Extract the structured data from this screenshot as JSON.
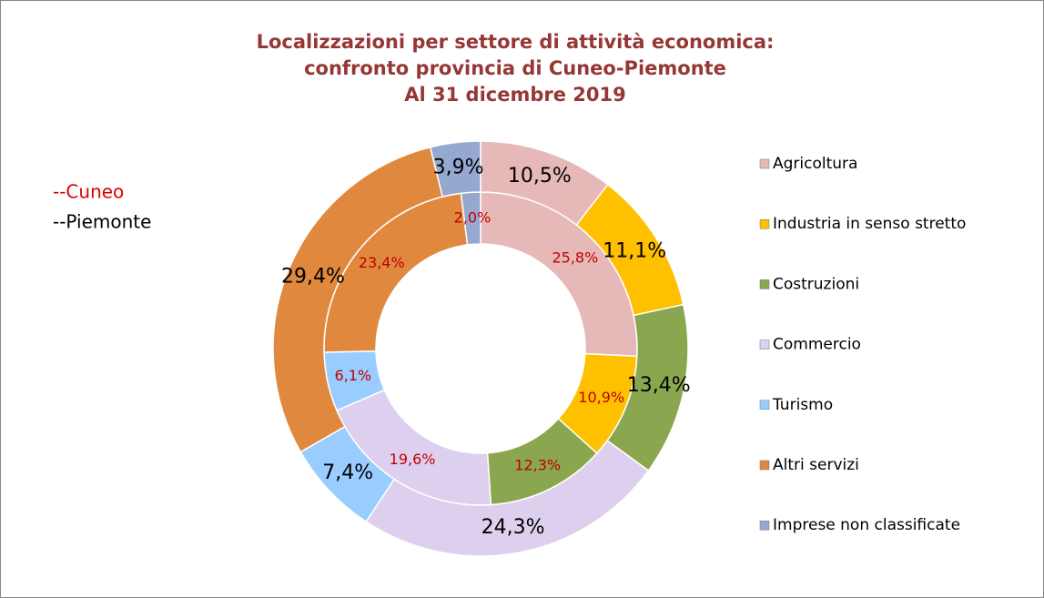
{
  "chart_data": {
    "type": "donut",
    "title": [
      "Localizzazioni per settore di attività economica:",
      "confronto provincia di Cuneo-Piemonte",
      "Al 31 dicembre 2019"
    ],
    "categories": [
      "Agricoltura",
      "Industria in senso stretto",
      "Costruzioni",
      "Commercio",
      "Turismo",
      "Altri servizi",
      "Imprese non classificate"
    ],
    "colors": [
      "#e6b9b8",
      "#ffc000",
      "#8aa64e",
      "#ddd0ee",
      "#99ccff",
      "#e0883e",
      "#95a8d0"
    ],
    "series": [
      {
        "name": "--Cuneo",
        "color": "#c00000",
        "values": [
          25.8,
          10.9,
          12.3,
          19.6,
          6.1,
          23.4,
          2.0
        ],
        "value_labels": [
          "25,8%",
          "10,9%",
          "12,3%",
          "19,6%",
          "6,1%",
          "23,4%",
          "2,0%"
        ]
      },
      {
        "name": "--Piemonte",
        "color": "#000000",
        "values": [
          10.5,
          11.1,
          13.4,
          24.3,
          7.4,
          29.4,
          3.9
        ],
        "value_labels": [
          "10,5%",
          "11,1%",
          "13,4%",
          "24,3%",
          "7,4%",
          "29,4%",
          "3,9%"
        ]
      }
    ]
  }
}
